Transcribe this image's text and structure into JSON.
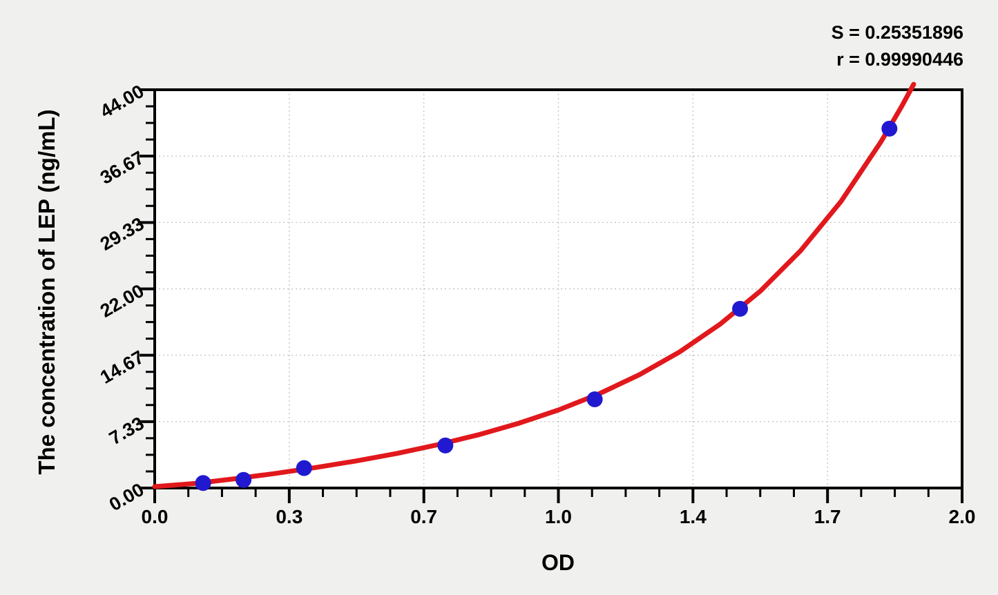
{
  "chart_data": {
    "type": "scatter",
    "title": "",
    "xlabel": "OD",
    "ylabel": "The concentration of LEP (ng/mL)",
    "xlim": [
      0,
      2
    ],
    "ylim": [
      0,
      44
    ],
    "x_major_ticks": [
      0,
      0.3333,
      0.6667,
      1,
      1.3333,
      1.6667,
      2
    ],
    "x_tick_labels": [
      "0.0",
      "0.3",
      "0.7",
      "1.0",
      "1.4",
      "1.7",
      "2.0"
    ],
    "y_major_ticks": [
      0,
      7.3333,
      14.6667,
      22,
      29.3333,
      36.6667,
      44
    ],
    "y_tick_labels": [
      "0.00",
      "7.33",
      "14.67",
      "22.00",
      "29.33",
      "36.67",
      "44.00"
    ],
    "minor_divisions_per_major": 4,
    "grid": {
      "show": true,
      "style": "dotted",
      "at": "major-ticks"
    },
    "legend": "none",
    "annotations": {
      "s": "S = 0.25351896",
      "r": "r = 0.99990446"
    },
    "series": [
      {
        "name": "standard-points",
        "type": "scatter",
        "x": [
          0.12,
          0.22,
          0.37,
          0.72,
          1.09,
          1.45,
          1.82
        ],
        "y": [
          0.55,
          0.9,
          2.2,
          4.7,
          9.8,
          19.8,
          39.7
        ]
      },
      {
        "name": "fit-curve",
        "type": "line",
        "samples": [
          [
            0,
            0.15
          ],
          [
            0.1,
            0.5
          ],
          [
            0.2,
            1.03
          ],
          [
            0.3,
            1.62
          ],
          [
            0.4,
            2.27
          ],
          [
            0.5,
            3.0
          ],
          [
            0.6,
            3.82
          ],
          [
            0.7,
            4.77
          ],
          [
            0.8,
            5.86
          ],
          [
            0.9,
            7.13
          ],
          [
            1.0,
            8.62
          ],
          [
            1.1,
            10.39
          ],
          [
            1.2,
            12.5
          ],
          [
            1.3,
            15.03
          ],
          [
            1.4,
            18.08
          ],
          [
            1.5,
            21.75
          ],
          [
            1.6,
            26.22
          ],
          [
            1.7,
            31.66
          ],
          [
            1.8,
            38.32
          ],
          [
            1.85,
            42.13
          ],
          [
            1.88,
            44.6
          ]
        ]
      }
    ],
    "colors": {
      "point": "#2119cf",
      "curve": "#e1181c",
      "grid": "#c6c6c6",
      "axis": "#000000",
      "plot_bg": "#ffffff",
      "page_bg": "#f0f0ee"
    }
  }
}
